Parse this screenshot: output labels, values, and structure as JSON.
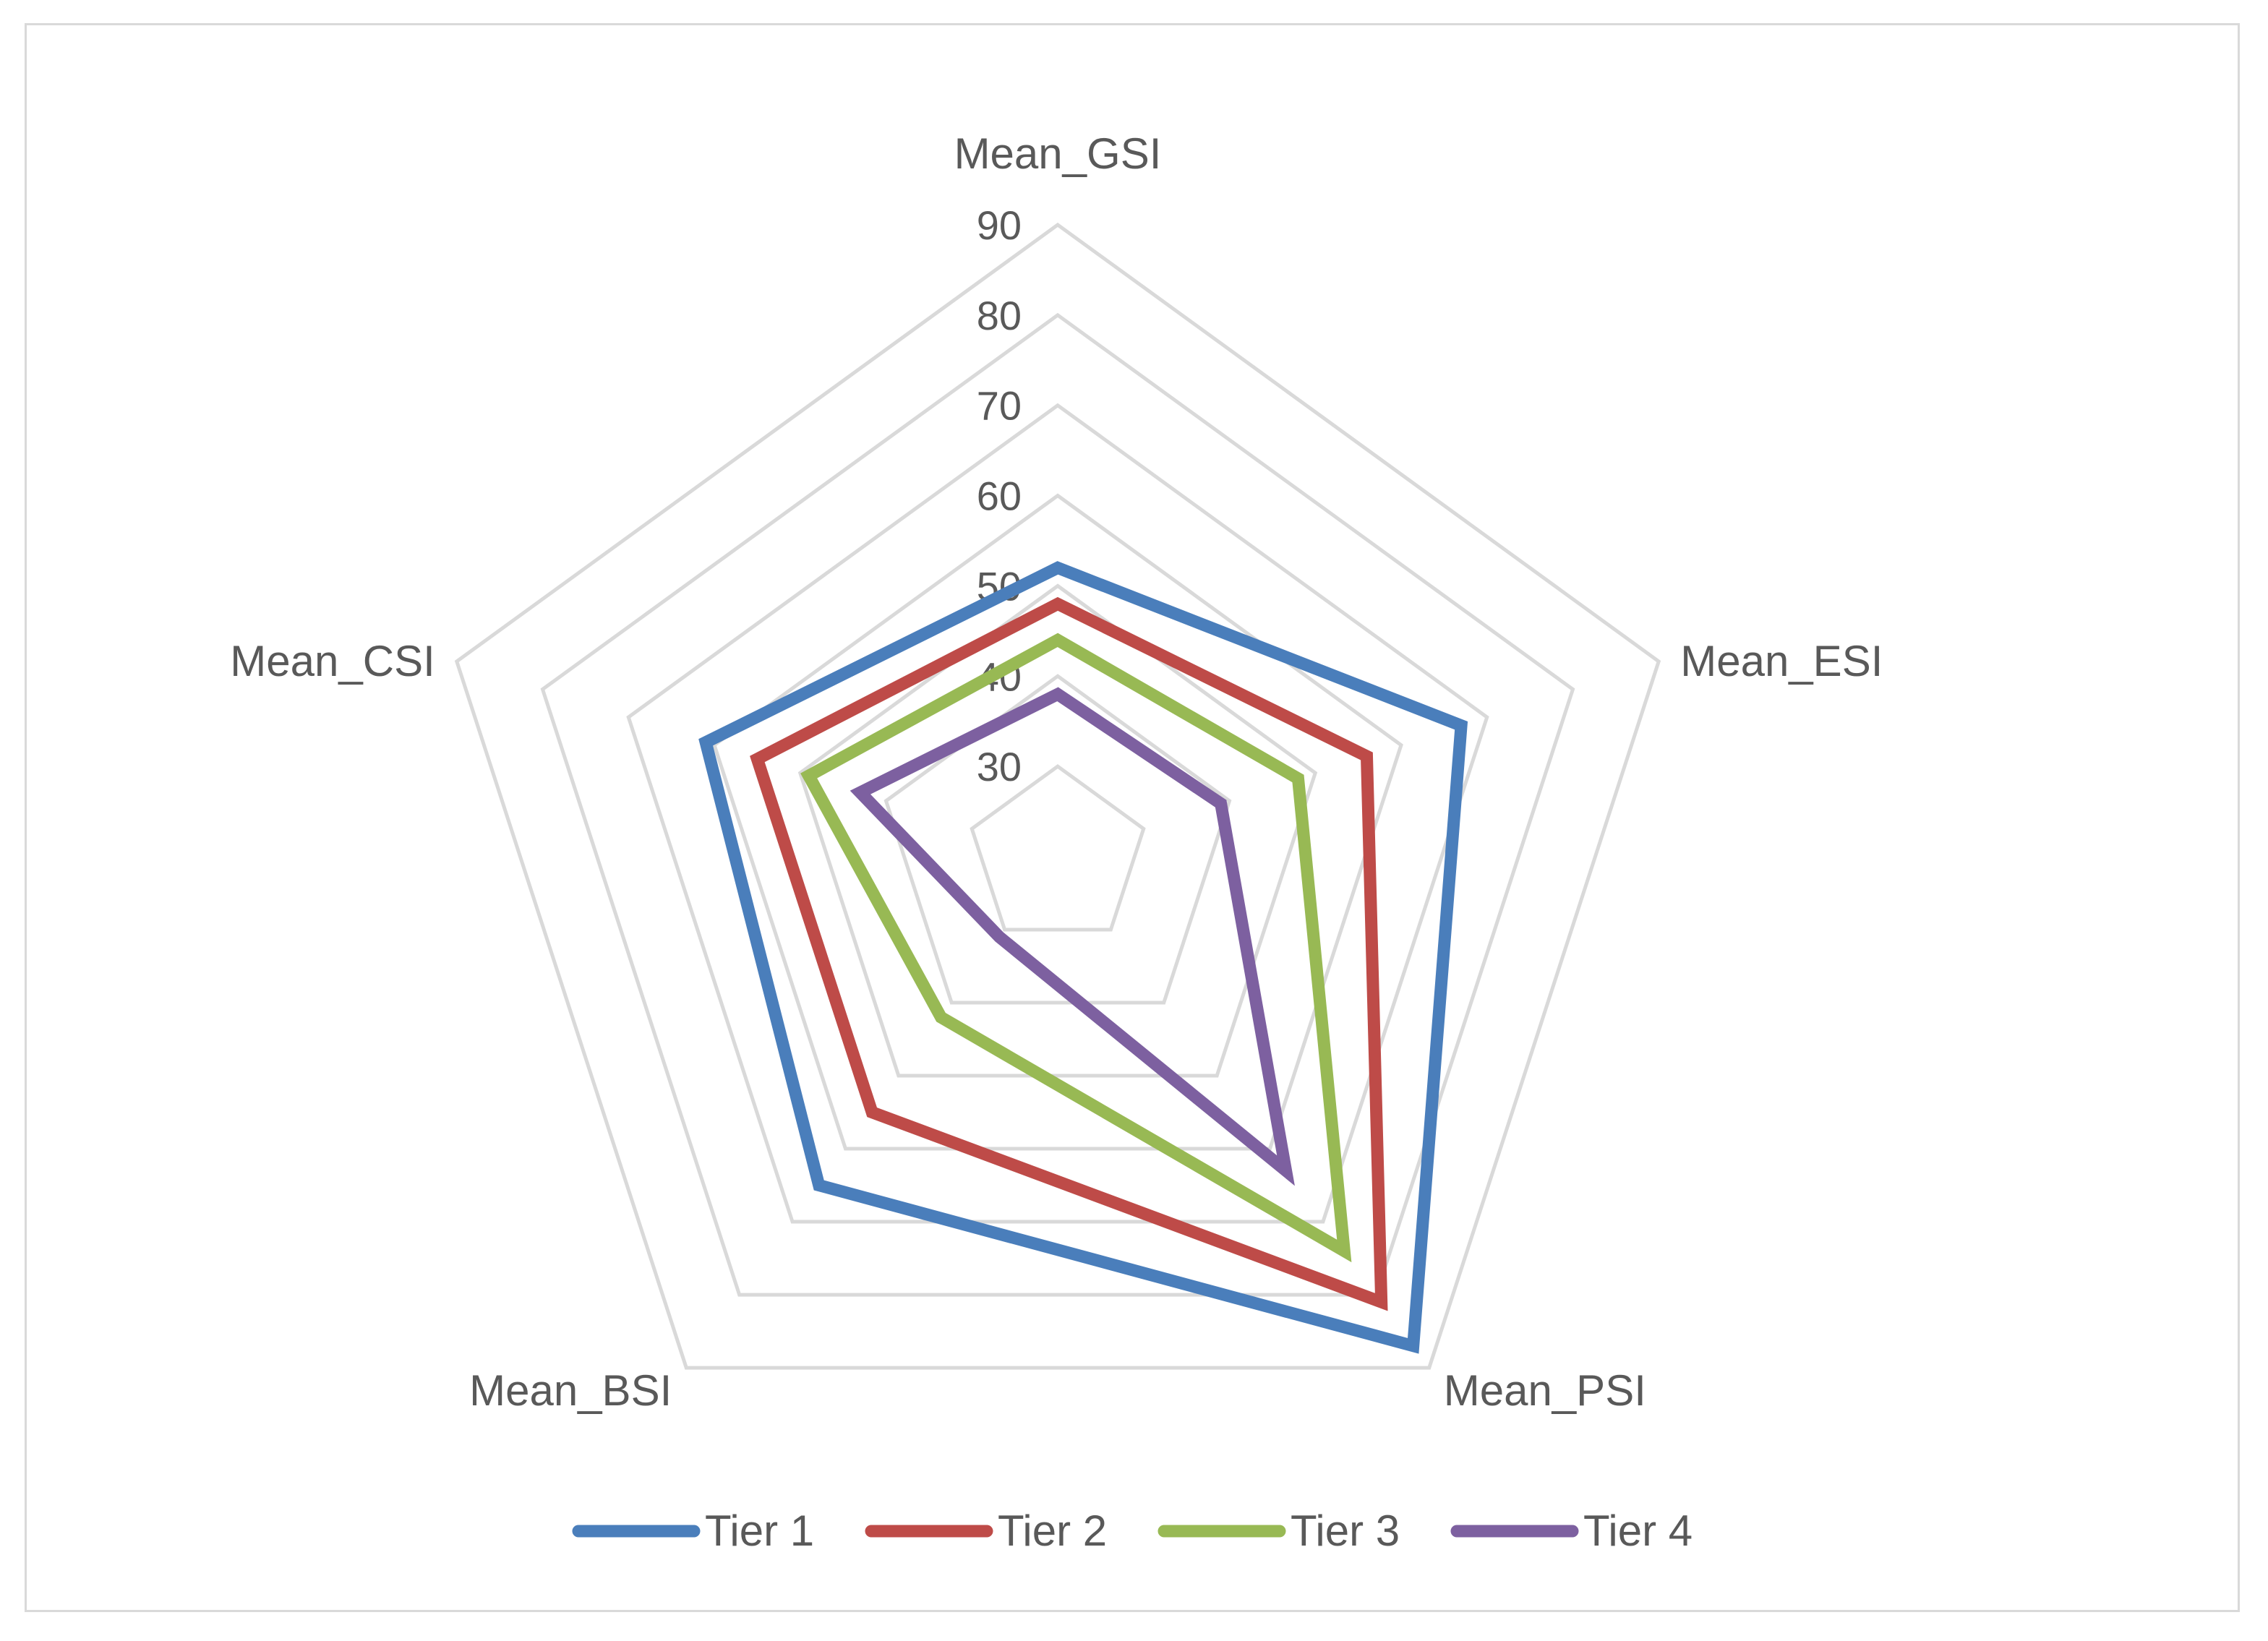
{
  "chart_data": {
    "type": "radar",
    "title": "",
    "axes": [
      "Mean_GSI",
      "Mean_ESI",
      "Mean_PSI",
      "Mean_BSI",
      "Mean_CSI"
    ],
    "ticks": [
      "30",
      "40",
      "50",
      "60",
      "70",
      "80",
      "90"
    ],
    "rlim": [
      20,
      90
    ],
    "grid": true,
    "legend_position": "bottom",
    "series": [
      {
        "name": "Tier 1",
        "color": "#4a7ebb",
        "values": [
          52,
          67,
          87,
          65,
          61
        ]
      },
      {
        "name": "Tier 2",
        "color": "#be4b48",
        "values": [
          48,
          56,
          81,
          55,
          55
        ]
      },
      {
        "name": "Tier 3",
        "color": "#98b954",
        "values": [
          44,
          48,
          74,
          42,
          49
        ]
      },
      {
        "name": "Tier 4",
        "color": "#7d60a0",
        "values": [
          38,
          39,
          63,
          31,
          43
        ]
      }
    ]
  }
}
